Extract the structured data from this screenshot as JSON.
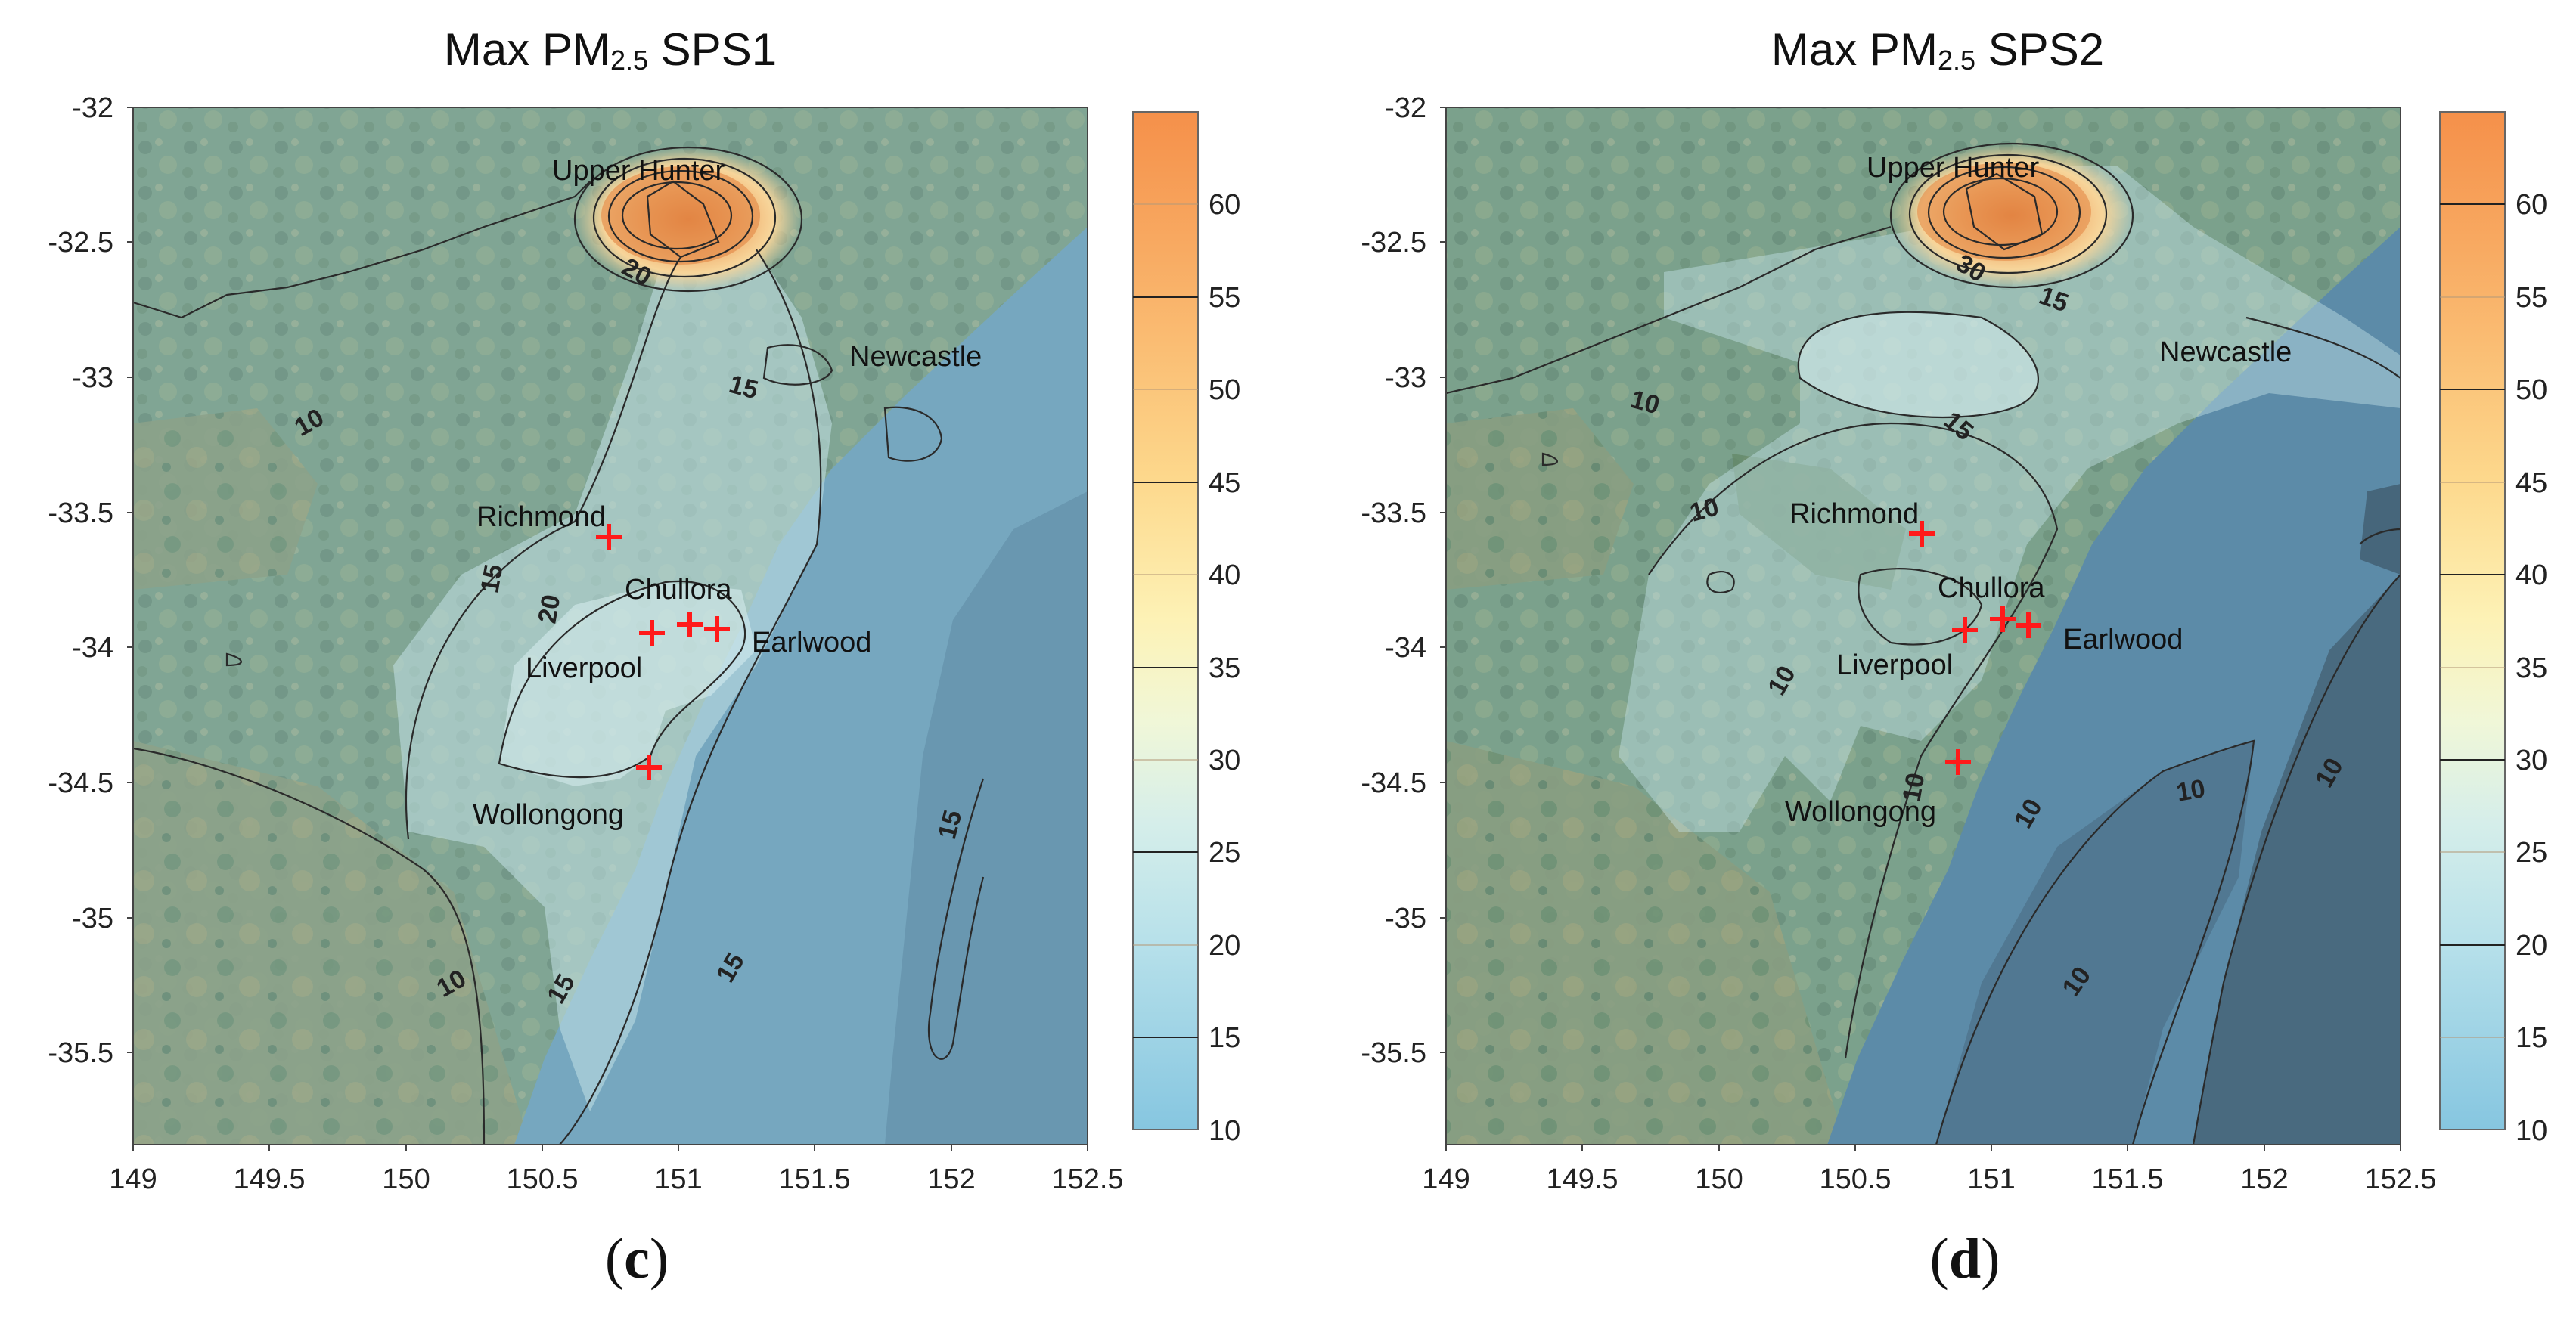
{
  "panels": [
    {
      "id": "c",
      "title_main": "Max PM",
      "title_sub": "2.5",
      "title_suffix": " SPS1",
      "panel_letter_open": "(",
      "panel_letter": "c",
      "panel_letter_close": ")",
      "x_ticks": [
        "149",
        "149.5",
        "150",
        "150.5",
        "151",
        "151.5",
        "152",
        "152.5"
      ],
      "y_ticks": [
        "-32",
        "-32.5",
        "-33",
        "-33.5",
        "-34",
        "-34.5",
        "-35",
        "-35.5"
      ],
      "colorbar_labels": [
        "60",
        "55",
        "50",
        "45",
        "40",
        "35",
        "30",
        "25",
        "20",
        "15",
        "10"
      ],
      "places": {
        "upper_hunter": "Upper Hunter",
        "newcastle": "Newcastle",
        "richmond": "Richmond",
        "chullora": "Chullora",
        "earlwood": "Earlwood",
        "liverpool": "Liverpool",
        "wollongong": "Wollongong"
      },
      "contour_labels": {
        "c20a": "20",
        "c15a": "15",
        "c10a": "10",
        "c15b": "15",
        "c20b": "20",
        "c15c": "15",
        "c10b": "10",
        "c15d": "15",
        "c15e": "15"
      }
    },
    {
      "id": "d",
      "title_main": "Max PM",
      "title_sub": "2.5",
      "title_suffix": " SPS2",
      "panel_letter_open": "(",
      "panel_letter": "d",
      "panel_letter_close": ")",
      "x_ticks": [
        "149",
        "149.5",
        "150",
        "150.5",
        "151",
        "151.5",
        "152",
        "152.5"
      ],
      "y_ticks": [
        "-32",
        "-32.5",
        "-33",
        "-33.5",
        "-34",
        "-34.5",
        "-35",
        "-35.5"
      ],
      "colorbar_labels": [
        "60",
        "55",
        "50",
        "45",
        "40",
        "35",
        "30",
        "25",
        "20",
        "15",
        "10"
      ],
      "places": {
        "upper_hunter": "Upper Hunter",
        "newcastle": "Newcastle",
        "richmond": "Richmond",
        "chullora": "Chullora",
        "earlwood": "Earlwood",
        "liverpool": "Liverpool",
        "wollongong": "Wollongong"
      },
      "contour_labels": {
        "c30": "30",
        "c15a": "15",
        "c10a": "10",
        "c15b": "15",
        "c10b": "10",
        "c10c": "10",
        "c10d": "10",
        "c10e": "10",
        "c10f": "10",
        "c10g": "10",
        "c10h": "10"
      }
    }
  ],
  "colors": {
    "land_green": "#5f8a6c",
    "land_brown": "#8a8a64",
    "sea_blue": "#5b93b3",
    "deep_sea": "#2f5474",
    "pm_high": "#f5a55a",
    "pm_mid": "#fde39a",
    "pm_low": "#bfe4ea",
    "marker_red": "#ff1a1a"
  },
  "site_markers": [
    "Richmond",
    "Chullora",
    "Earlwood",
    "Liverpool",
    "Wollongong"
  ]
}
